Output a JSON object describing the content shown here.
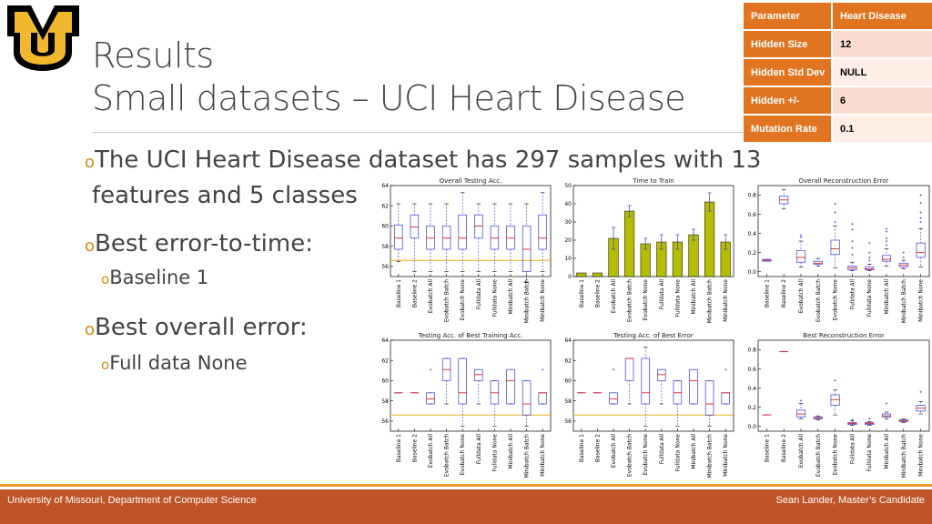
{
  "slide": {
    "title_line1": "Results",
    "title_line2": "Small datasets – UCI Heart Disease"
  },
  "logo": {
    "lettering": "MU",
    "colors": {
      "gold": "#f1b82d",
      "black": "#000000"
    }
  },
  "param_table": {
    "rows": [
      {
        "key": "Parameter",
        "value": "Heart Disease"
      },
      {
        "key": "Hidden Size",
        "value": "12"
      },
      {
        "key": "Hidden Std Dev",
        "value": "NULL"
      },
      {
        "key": "Hidden +/-",
        "value": "6"
      },
      {
        "key": "Mutation Rate",
        "value": "0.1"
      }
    ],
    "colors": {
      "header": "#e07420",
      "row": "#f8ddd0",
      "row_alt": "#fdeee6"
    }
  },
  "bullets": {
    "marker": "o",
    "b1_line1": "The UCI Heart Disease dataset has 297 samples with 13",
    "b1_line2": "features and 5 classes",
    "b2": "Best error-to-time:",
    "b2_sub": "Baseline 1",
    "b3": "Best overall error:",
    "b3_sub": "Full data None"
  },
  "footer": {
    "left": "University of Missouri, Department of Computer Science",
    "right": "Sean Lander, Master’s Candidate",
    "colors": {
      "bar": "#bf5428",
      "stripe": "#f29b2c"
    }
  },
  "chart_data": [
    {
      "type": "box",
      "title": "Overall Testing Acc.",
      "categories": [
        "Baseline 1",
        "Baseline 2",
        "Evobatch All",
        "Evobatch Batch",
        "Evobatch None",
        "Fulldata All",
        "Fulldata None",
        "Minibatch All",
        "Minibatch Batch",
        "Minibatch None"
      ],
      "ylim": [
        55,
        64
      ],
      "yticks": [
        56,
        58,
        60,
        62,
        64
      ],
      "boxes": [
        {
          "whislo": 56.5,
          "q1": 57.7,
          "med": 58.8,
          "q3": 60.1,
          "whishi": 62.2
        },
        {
          "whislo": 55.5,
          "q1": 58.8,
          "med": 59.9,
          "q3": 61.1,
          "whishi": 62.2
        },
        {
          "whislo": 55.5,
          "q1": 57.7,
          "med": 58.8,
          "q3": 60.0,
          "whishi": 62.2
        },
        {
          "whislo": 55.5,
          "q1": 57.7,
          "med": 58.8,
          "q3": 60.0,
          "whishi": 62.2
        },
        {
          "whislo": 55.5,
          "q1": 57.7,
          "med": 58.8,
          "q3": 61.1,
          "whishi": 63.3
        },
        {
          "whislo": 55.5,
          "q1": 58.8,
          "med": 60.0,
          "q3": 61.1,
          "whishi": 62.2
        },
        {
          "whislo": 55.5,
          "q1": 57.7,
          "med": 58.8,
          "q3": 60.0,
          "whishi": 62.2
        },
        {
          "whislo": 55.5,
          "q1": 57.7,
          "med": 58.8,
          "q3": 60.0,
          "whishi": 62.2
        },
        {
          "whislo": 54.4,
          "q1": 55.5,
          "med": 57.7,
          "q3": 60.0,
          "whishi": 62.2
        },
        {
          "whislo": 55.5,
          "q1": 57.7,
          "med": 58.8,
          "q3": 61.1,
          "whishi": 63.3
        }
      ],
      "hline": 56.6
    },
    {
      "type": "bar",
      "title": "Time to Train",
      "categories": [
        "Baseline 1",
        "Baseline 2",
        "Evobatch All",
        "Evobatch Batch",
        "Evobatch None",
        "Fulldata All",
        "Fulldata None",
        "Minibatch All",
        "Minibatch Batch",
        "Minibatch None"
      ],
      "values": [
        2,
        2,
        21,
        36,
        18,
        19,
        19,
        23,
        41,
        19
      ],
      "errors": [
        0,
        0,
        6,
        3,
        3,
        4,
        4,
        3,
        5,
        4
      ],
      "ylim": [
        0,
        50
      ],
      "yticks": [
        0,
        10,
        20,
        30,
        40,
        50
      ],
      "color": "#b5bd00"
    },
    {
      "type": "box",
      "title": "Overall Reconstruction Error",
      "categories": [
        "Baseline 1",
        "Baseline 2",
        "Evobatch All",
        "Evobatch Batch",
        "Evobatch None",
        "Fulldata All",
        "Fulldata None",
        "Minibatch All",
        "Minibatch Batch",
        "Minibatch None"
      ],
      "ylim": [
        -0.05,
        0.9
      ],
      "yticks": [
        0.0,
        0.2,
        0.4,
        0.6,
        0.8
      ],
      "boxes": [
        {
          "whislo": 0.11,
          "q1": 0.11,
          "med": 0.12,
          "q3": 0.13,
          "whishi": 0.13
        },
        {
          "whislo": 0.66,
          "q1": 0.71,
          "med": 0.75,
          "q3": 0.79,
          "whishi": 0.86
        },
        {
          "whislo": 0.05,
          "q1": 0.1,
          "med": 0.15,
          "q3": 0.22,
          "whishi": 0.32
        },
        {
          "whislo": 0.06,
          "q1": 0.08,
          "med": 0.09,
          "q3": 0.11,
          "whishi": 0.14
        },
        {
          "whislo": 0.04,
          "q1": 0.18,
          "med": 0.24,
          "q3": 0.33,
          "whishi": 0.48
        },
        {
          "whislo": 0.01,
          "q1": 0.02,
          "med": 0.04,
          "q3": 0.06,
          "whishi": 0.1
        },
        {
          "whislo": 0.01,
          "q1": 0.02,
          "med": 0.03,
          "q3": 0.05,
          "whishi": 0.08
        },
        {
          "whislo": 0.06,
          "q1": 0.11,
          "med": 0.13,
          "q3": 0.17,
          "whishi": 0.24
        },
        {
          "whislo": 0.03,
          "q1": 0.05,
          "med": 0.07,
          "q3": 0.09,
          "whishi": 0.12
        },
        {
          "whislo": 0.05,
          "q1": 0.15,
          "med": 0.2,
          "q3": 0.3,
          "whishi": 0.45
        }
      ],
      "outliers": [
        [],
        [],
        [
          0.38,
          0.36
        ],
        [],
        [
          0.52,
          0.62,
          0.71
        ],
        [
          0.18,
          0.25,
          0.32,
          0.44,
          0.5
        ],
        [
          0.12,
          0.15,
          0.2,
          0.3
        ],
        [
          0.28,
          0.32,
          0.35,
          0.42,
          0.45
        ],
        [
          0.15,
          0.2
        ],
        [
          0.52,
          0.56,
          0.62,
          0.72,
          0.8
        ]
      ]
    },
    {
      "type": "box",
      "title": "Testing Acc. of Best Training Acc.",
      "categories": [
        "Baseline 1",
        "Baseline 2",
        "Evobatch All",
        "Evobatch Batch",
        "Evobatch None",
        "Fulldata All",
        "Fulldata None",
        "Minibatch All",
        "Minibatch Batch",
        "Minibatch None"
      ],
      "ylim": [
        55,
        64
      ],
      "yticks": [
        56,
        58,
        60,
        62,
        64
      ],
      "boxes": [
        {
          "whislo": 58.8,
          "q1": 58.8,
          "med": 58.8,
          "q3": 58.8,
          "whishi": 58.8
        },
        {
          "whislo": 58.8,
          "q1": 58.8,
          "med": 58.8,
          "q3": 58.8,
          "whishi": 58.8
        },
        {
          "whislo": 57.7,
          "q1": 57.7,
          "med": 58.2,
          "q3": 58.8,
          "whishi": 58.8
        },
        {
          "whislo": 57.7,
          "q1": 60.0,
          "med": 61.1,
          "q3": 62.2,
          "whishi": 62.2
        },
        {
          "whislo": 55.5,
          "q1": 57.7,
          "med": 58.8,
          "q3": 62.2,
          "whishi": 62.2
        },
        {
          "whislo": 57.7,
          "q1": 60.0,
          "med": 60.6,
          "q3": 61.1,
          "whishi": 61.1
        },
        {
          "whislo": 55.5,
          "q1": 57.7,
          "med": 58.8,
          "q3": 60.0,
          "whishi": 60.0
        },
        {
          "whislo": 57.7,
          "q1": 57.7,
          "med": 60.0,
          "q3": 61.1,
          "whishi": 61.1
        },
        {
          "whislo": 55.5,
          "q1": 56.6,
          "med": 57.7,
          "q3": 60.0,
          "whishi": 60.0
        },
        {
          "whislo": 57.7,
          "q1": 57.7,
          "med": 58.8,
          "q3": 58.8,
          "whishi": 58.8
        }
      ],
      "outliers": [
        [],
        [],
        [
          61.1
        ],
        [],
        [],
        [],
        [],
        [],
        [],
        [
          61.1
        ]
      ],
      "hline": 56.6
    },
    {
      "type": "box",
      "title": "Testing Acc. of Best Error",
      "categories": [
        "Baseline 1",
        "Baseline 2",
        "Evobatch All",
        "Evobatch Batch",
        "Evobatch None",
        "Fulldata All",
        "Fulldata None",
        "Minibatch All",
        "Minibatch Batch",
        "Minibatch None"
      ],
      "ylim": [
        55,
        64
      ],
      "yticks": [
        56,
        58,
        60,
        62,
        64
      ],
      "boxes": [
        {
          "whislo": 58.8,
          "q1": 58.8,
          "med": 58.8,
          "q3": 58.8,
          "whishi": 58.8
        },
        {
          "whislo": 58.8,
          "q1": 58.8,
          "med": 58.8,
          "q3": 58.8,
          "whishi": 58.8
        },
        {
          "whislo": 57.7,
          "q1": 57.7,
          "med": 58.2,
          "q3": 58.8,
          "whishi": 58.8
        },
        {
          "whislo": 57.7,
          "q1": 60.0,
          "med": 62.2,
          "q3": 62.2,
          "whishi": 62.2
        },
        {
          "whislo": 55.5,
          "q1": 57.7,
          "med": 58.8,
          "q3": 62.2,
          "whishi": 63.3
        },
        {
          "whislo": 57.7,
          "q1": 60.0,
          "med": 60.6,
          "q3": 61.1,
          "whishi": 61.1
        },
        {
          "whislo": 55.5,
          "q1": 57.7,
          "med": 58.8,
          "q3": 60.0,
          "whishi": 60.0
        },
        {
          "whislo": 57.7,
          "q1": 57.7,
          "med": 60.0,
          "q3": 61.1,
          "whishi": 61.1
        },
        {
          "whislo": 55.5,
          "q1": 56.6,
          "med": 57.7,
          "q3": 60.0,
          "whishi": 60.0
        },
        {
          "whislo": 57.7,
          "q1": 57.7,
          "med": 58.8,
          "q3": 58.8,
          "whishi": 58.8
        }
      ],
      "outliers": [
        [],
        [],
        [
          61.1
        ],
        [],
        [],
        [],
        [],
        [],
        [],
        [
          61.1
        ]
      ],
      "hline": 56.6
    },
    {
      "type": "box",
      "title": "Best Reconstruction Error",
      "categories": [
        "Baseline 1",
        "Baseline 2",
        "Evobatch All",
        "Evobatch Batch",
        "Evobatch None",
        "Fulldata All",
        "Fulldata None",
        "Minibatch All",
        "Minibatch Batch",
        "Minibatch None"
      ],
      "ylim": [
        -0.05,
        0.9
      ],
      "yticks": [
        0.0,
        0.2,
        0.4,
        0.6,
        0.8
      ],
      "boxes": [
        {
          "whislo": 0.12,
          "q1": 0.12,
          "med": 0.12,
          "q3": 0.12,
          "whishi": 0.12
        },
        {
          "whislo": 0.78,
          "q1": 0.78,
          "med": 0.78,
          "q3": 0.78,
          "whishi": 0.78
        },
        {
          "whislo": 0.08,
          "q1": 0.1,
          "med": 0.13,
          "q3": 0.17,
          "whishi": 0.24
        },
        {
          "whislo": 0.07,
          "q1": 0.08,
          "med": 0.09,
          "q3": 0.1,
          "whishi": 0.11
        },
        {
          "whislo": 0.12,
          "q1": 0.22,
          "med": 0.28,
          "q3": 0.33,
          "whishi": 0.38
        },
        {
          "whislo": 0.01,
          "q1": 0.02,
          "med": 0.03,
          "q3": 0.04,
          "whishi": 0.06
        },
        {
          "whislo": 0.01,
          "q1": 0.02,
          "med": 0.03,
          "q3": 0.04,
          "whishi": 0.05
        },
        {
          "whislo": 0.08,
          "q1": 0.1,
          "med": 0.11,
          "q3": 0.13,
          "whishi": 0.15
        },
        {
          "whislo": 0.04,
          "q1": 0.05,
          "med": 0.06,
          "q3": 0.07,
          "whishi": 0.08
        },
        {
          "whislo": 0.13,
          "q1": 0.16,
          "med": 0.19,
          "q3": 0.22,
          "whishi": 0.26
        }
      ],
      "outliers": [
        [],
        [],
        [
          0.27
        ],
        [],
        [
          0.48
        ],
        [
          0.07
        ],
        [
          0.08
        ],
        [
          0.24
        ],
        [],
        [
          0.36
        ]
      ]
    }
  ]
}
